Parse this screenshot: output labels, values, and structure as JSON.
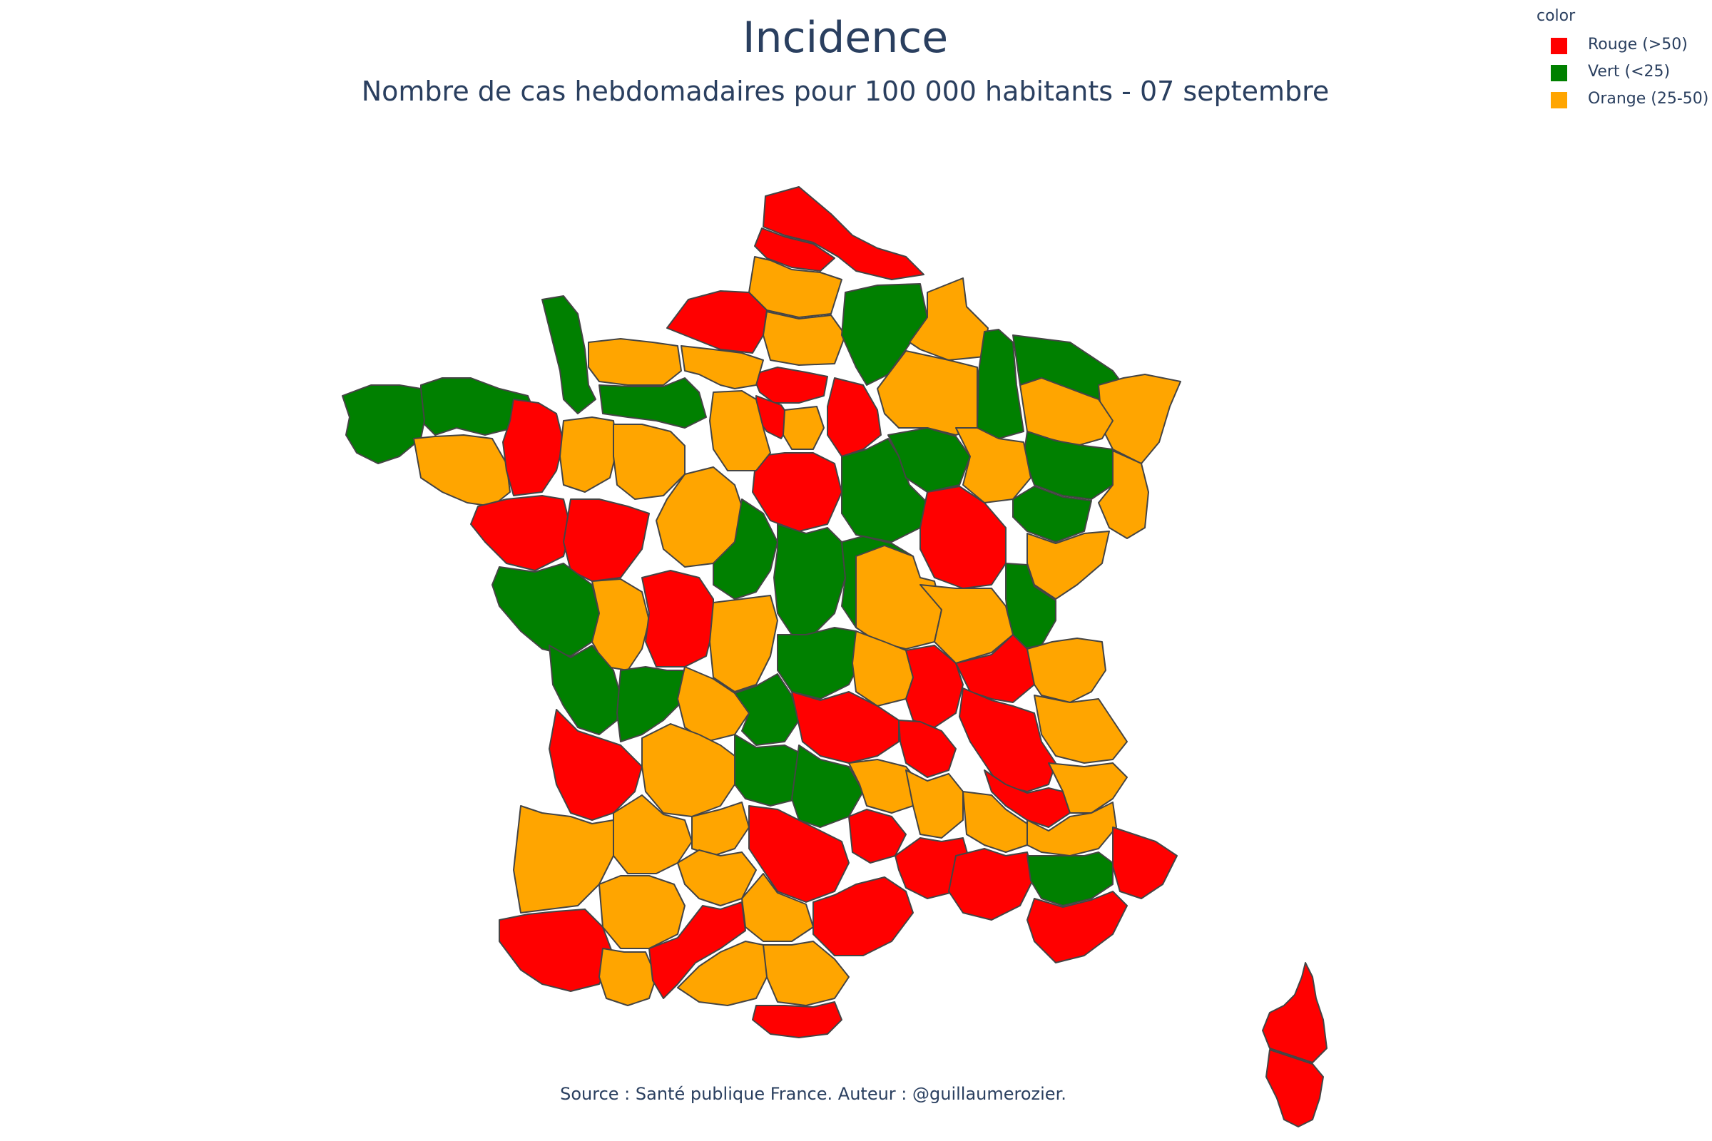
{
  "title": "Incidence",
  "subtitle": "Nombre de cas hebdomadaires pour 100 000 habitants - 07 septembre",
  "legend": {
    "title": "color",
    "items": [
      {
        "label": "Rouge (>50)",
        "color": "#ff0000"
      },
      {
        "label": "Vert (<25)",
        "color": "#008000"
      },
      {
        "label": "Orange (25-50)",
        "color": "#ffa500"
      }
    ]
  },
  "source": "Source : Santé publique France. Auteur : @guillaumerozier.",
  "colors": {
    "rouge": "#ff0000",
    "vert": "#008000",
    "orange": "#ffa500",
    "border": "#444444"
  }
}
